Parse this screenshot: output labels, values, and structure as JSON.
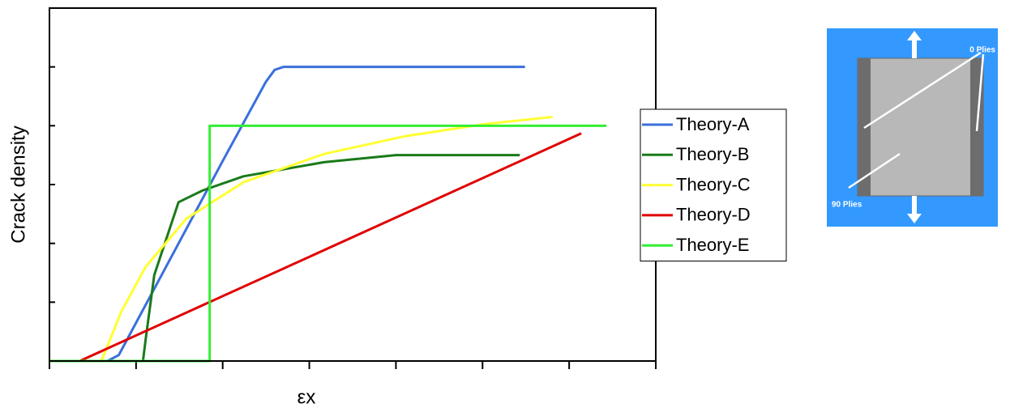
{
  "chart_data": {
    "type": "line",
    "x_label": "εx",
    "y_label": "Crack density",
    "xlim": [
      0,
      7
    ],
    "ylim": [
      0,
      6
    ],
    "xticks": [
      0,
      1,
      2,
      3,
      4,
      5,
      6,
      7
    ],
    "yticks": [
      0,
      1,
      2,
      3,
      4,
      5,
      6
    ],
    "legend": "right",
    "series": [
      {
        "name": "Theory-A",
        "color": "#3a6fdc",
        "x": [
          0,
          0.67,
          0.8,
          1.2,
          2.0,
          2.5,
          2.6,
          2.7,
          5.49
        ],
        "values": [
          0,
          0,
          0.1,
          1.2,
          3.4,
          4.75,
          4.95,
          5.0,
          5.0
        ]
      },
      {
        "name": "Theory-B",
        "color": "#1a7a1a",
        "x": [
          0,
          1.08,
          1.11,
          1.16,
          1.21,
          1.49,
          1.77,
          2.24,
          3.17,
          4.0,
          5.43
        ],
        "values": [
          0,
          0,
          0.36,
          0.91,
          1.46,
          2.7,
          2.9,
          3.14,
          3.38,
          3.5,
          3.5
        ]
      },
      {
        "name": "Theory-C",
        "color": "#ffff33",
        "x": [
          0.6,
          0.83,
          1.11,
          1.58,
          2.24,
          3.17,
          4.1,
          5.04,
          5.81
        ],
        "values": [
          0,
          0.84,
          1.6,
          2.42,
          3.04,
          3.52,
          3.82,
          4.03,
          4.15
        ]
      },
      {
        "name": "Theory-D",
        "color": "#e00000",
        "x": [
          0,
          0.35,
          6.14
        ],
        "values": [
          0,
          0,
          3.87
        ]
      },
      {
        "name": "Theory-E",
        "color": "#33ee33",
        "x": [
          0,
          1.85,
          1.85,
          6.43
        ],
        "values": [
          0,
          0,
          4.0,
          4.0
        ]
      }
    ]
  },
  "inset": {
    "labels": [
      "0 Plies",
      "90 Plies"
    ]
  }
}
